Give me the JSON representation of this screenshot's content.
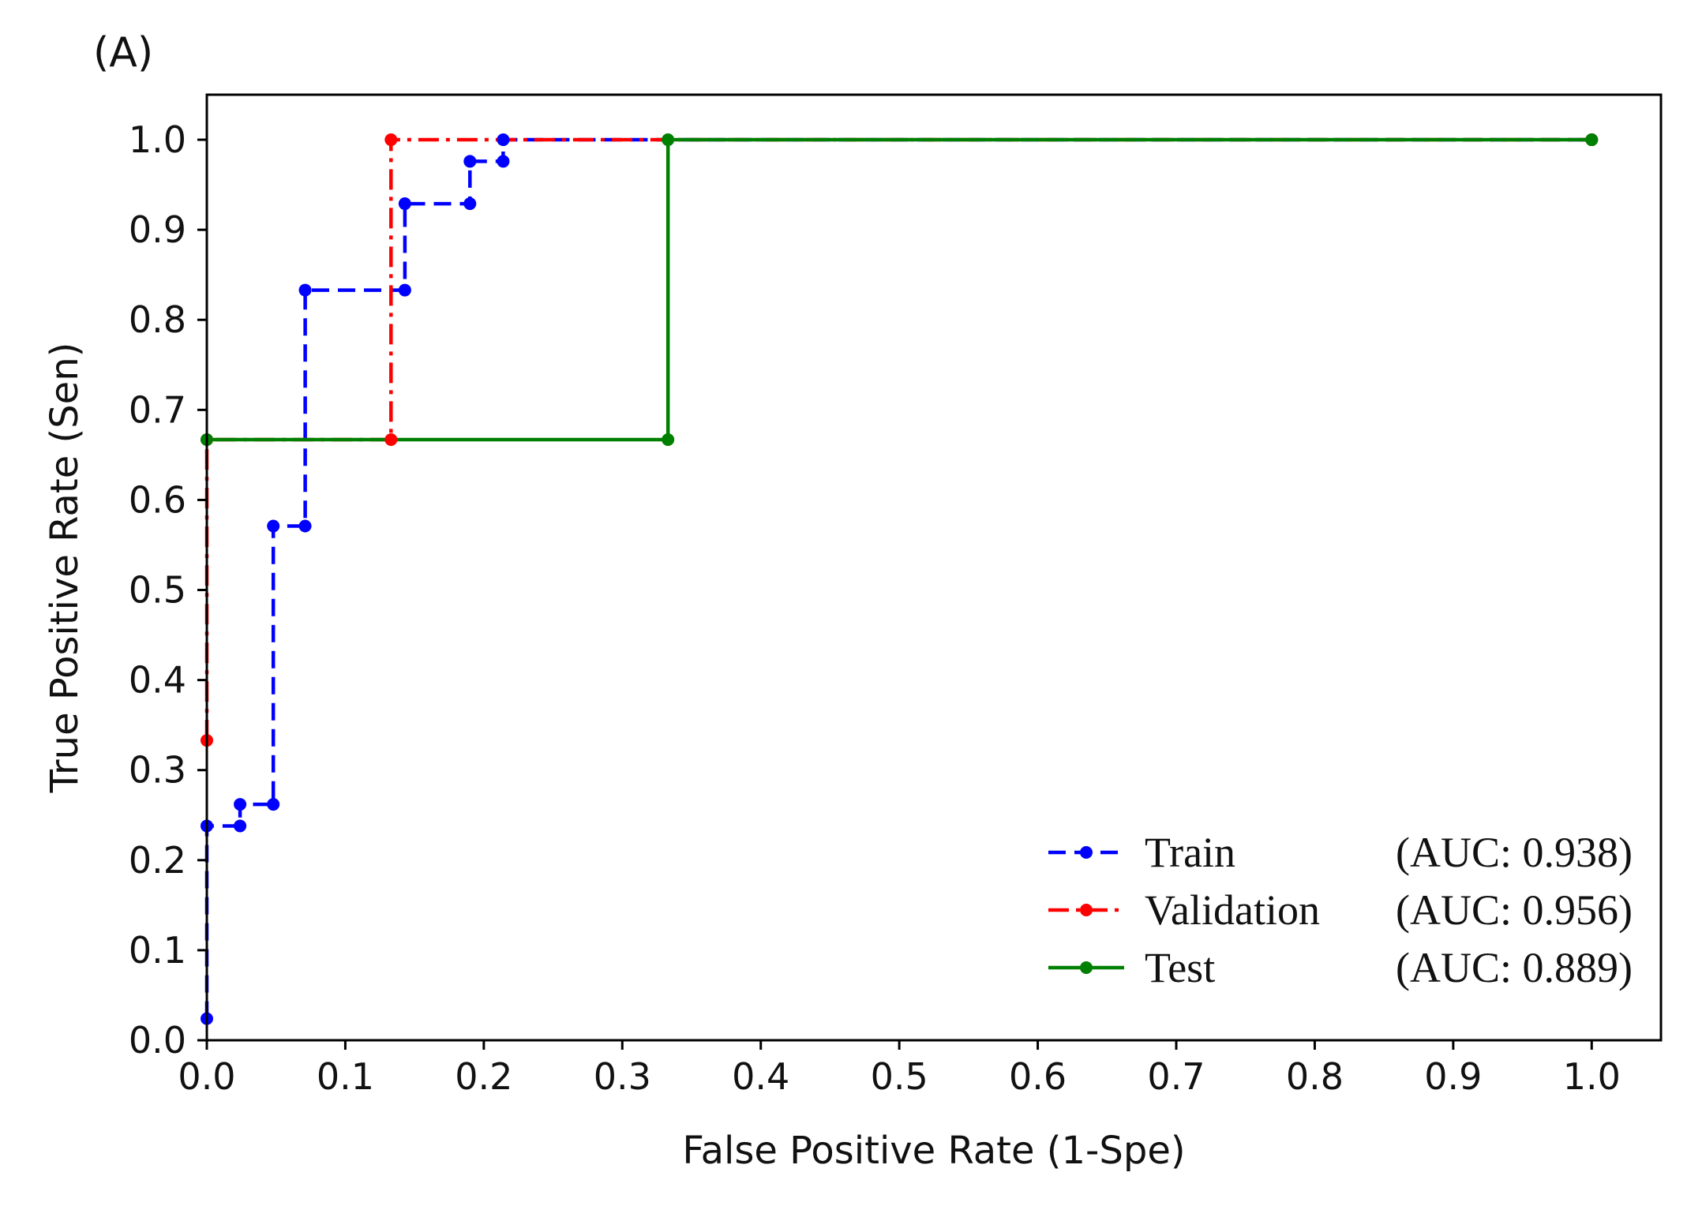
{
  "chart_data": {
    "type": "line",
    "panel_label": "(A)",
    "xlabel": "False Positive Rate (1-Spe)",
    "ylabel": "True Positive Rate (Sen)",
    "xlim": [
      0.0,
      1.05
    ],
    "ylim": [
      0.0,
      1.05
    ],
    "x_ticks": [
      "0.0",
      "0.1",
      "0.2",
      "0.3",
      "0.4",
      "0.5",
      "0.6",
      "0.7",
      "0.8",
      "0.9",
      "1.0"
    ],
    "y_ticks": [
      "0.0",
      "0.1",
      "0.2",
      "0.3",
      "0.4",
      "0.5",
      "0.6",
      "0.7",
      "0.8",
      "0.9",
      "1.0"
    ],
    "grid": false,
    "legend_position": "bottom-right",
    "series": [
      {
        "name": "Train",
        "auc_label": "(AUC: 0.938)",
        "color": "#0000ff",
        "line_style": "dashed",
        "x": [
          0.0,
          0.0,
          0.024,
          0.024,
          0.048,
          0.048,
          0.071,
          0.071,
          0.143,
          0.143,
          0.19,
          0.19,
          0.214,
          0.214,
          1.0
        ],
        "y": [
          0.024,
          0.238,
          0.238,
          0.262,
          0.262,
          0.571,
          0.571,
          0.833,
          0.833,
          0.929,
          0.929,
          0.976,
          0.976,
          1.0,
          1.0
        ]
      },
      {
        "name": "Validation",
        "auc_label": "(AUC: 0.956)",
        "color": "#ff0000",
        "line_style": "dashdot",
        "x": [
          0.0,
          0.0,
          0.133,
          0.133,
          1.0
        ],
        "y": [
          0.333,
          0.667,
          0.667,
          1.0,
          1.0
        ]
      },
      {
        "name": "Test",
        "auc_label": "(AUC: 0.889)",
        "color": "#008000",
        "line_style": "solid",
        "x": [
          0.0,
          0.333,
          0.333,
          1.0
        ],
        "y": [
          0.667,
          0.667,
          1.0,
          1.0
        ]
      }
    ]
  }
}
